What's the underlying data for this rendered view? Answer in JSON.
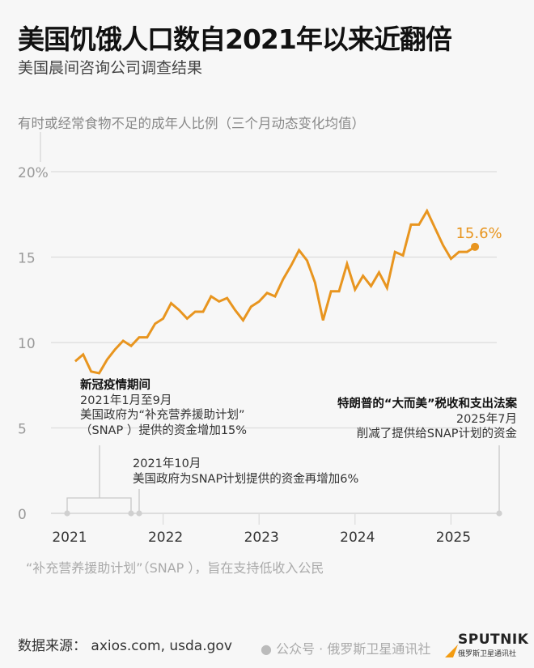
{
  "header": {
    "title": "美国饥饿人口数自2021年以来近翻倍",
    "subtitle": "美国晨间咨询公司调查结果"
  },
  "chart_data": {
    "type": "line",
    "title": "美国饥饿人口数自2021年以来近翻倍",
    "subtitle": "美国晨间咨询公司调查结果",
    "ylabel": "有时或经常食物不足的成年人比例（三个月动态变化均值）",
    "xlabel": "",
    "ylim": [
      0,
      20
    ],
    "yticks": [
      {
        "value": 20,
        "label": "20%"
      },
      {
        "value": 15,
        "label": "15"
      },
      {
        "value": 10,
        "label": "10"
      },
      {
        "value": 5,
        "label": "5"
      },
      {
        "value": 0,
        "label": "0"
      }
    ],
    "xticks": [
      "2021",
      "2022",
      "2023",
      "2024",
      "2025"
    ],
    "grid": true,
    "line_color": "#e8951f",
    "x_start": "2021-02",
    "x_step": "month",
    "values": [
      8.9,
      9.3,
      8.3,
      8.2,
      9.0,
      9.6,
      10.1,
      9.8,
      10.3,
      10.3,
      11.1,
      11.4,
      12.3,
      11.9,
      11.4,
      11.8,
      11.8,
      12.7,
      12.4,
      12.6,
      11.9,
      11.3,
      12.1,
      12.4,
      12.9,
      12.7,
      13.7,
      14.5,
      15.4,
      14.8,
      13.5,
      11.3,
      13.0,
      13.0,
      14.6,
      13.1,
      13.9,
      13.3,
      14.1,
      13.2,
      15.3,
      15.1,
      16.9,
      16.9,
      17.7,
      16.7,
      15.7,
      14.9,
      15.3,
      15.3,
      15.6
    ],
    "end_label": "15.6%",
    "annotations": [
      {
        "title": "新冠疫情期间",
        "lines": [
          "2021年1月至9月",
          "美国政府为“补充营养援助计划”",
          "（SNAP ）提供的资金增加15%"
        ]
      },
      {
        "lines": [
          "2021年10月",
          "美国政府为SNAP计划提供的资金再增加6%"
        ]
      },
      {
        "title": "特朗普的“大而美”税收和支出法案",
        "lines": [
          "2025年7月",
          "削减了提供给SNAP计划的资金"
        ]
      }
    ]
  },
  "footer": {
    "note": "“补充营养援助计划”（SNAP ），旨在支持低收入公民",
    "source": "数据来源： axios.com, usda.gov",
    "watermark": "公众号 · 俄罗斯卫星通讯社",
    "logo_text": "SPUTNIK",
    "logo_sub": "俄罗斯卫星通讯社"
  }
}
